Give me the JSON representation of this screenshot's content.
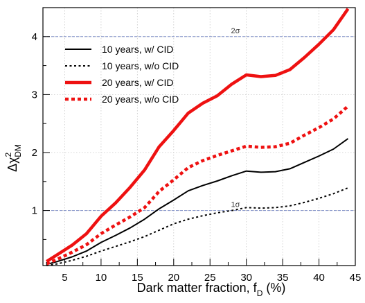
{
  "chart_data": {
    "type": "line",
    "title": "",
    "xlabel": {
      "main": "Dark matter fraction, f",
      "sub": "D",
      "suffix": " (%)"
    },
    "ylabel": {
      "main": "Δχ",
      "sup": "2",
      "sub": "DM"
    },
    "xlim": [
      2,
      45
    ],
    "ylim": [
      0.05,
      4.5
    ],
    "xticks": [
      5,
      10,
      15,
      20,
      25,
      30,
      35,
      40,
      45
    ],
    "yticks": [
      1,
      2,
      3,
      4
    ],
    "grid": true,
    "legend_position": "top-left",
    "reference_lines": [
      {
        "y": 4,
        "label": "2σ",
        "label_x": 28.5,
        "color": "#7f8fc7"
      },
      {
        "y": 1,
        "label": "1σ",
        "label_x": 28.5,
        "color": "#7f8fc7"
      }
    ],
    "series": [
      {
        "name": "10 years, w/ CID",
        "color": "#000000",
        "style": "solid",
        "weight": "thin",
        "x": [
          2.5,
          4,
          6,
          8,
          10,
          12,
          14,
          16,
          18,
          20,
          22,
          24,
          26,
          28,
          30,
          32,
          34,
          36,
          38,
          40,
          42,
          44
        ],
        "y": [
          0.07,
          0.12,
          0.2,
          0.3,
          0.45,
          0.57,
          0.7,
          0.85,
          1.03,
          1.18,
          1.34,
          1.43,
          1.51,
          1.6,
          1.68,
          1.66,
          1.67,
          1.72,
          1.83,
          1.94,
          2.06,
          2.24
        ]
      },
      {
        "name": "10 years, w/o CID",
        "color": "#000000",
        "style": "dotted",
        "weight": "thin",
        "x": [
          2.5,
          4,
          6,
          8,
          10,
          12,
          14,
          16,
          18,
          20,
          22,
          24,
          26,
          28,
          30,
          32,
          34,
          36,
          38,
          40,
          42,
          44
        ],
        "y": [
          0.05,
          0.08,
          0.14,
          0.21,
          0.3,
          0.38,
          0.46,
          0.55,
          0.66,
          0.77,
          0.85,
          0.91,
          0.96,
          1.0,
          1.05,
          1.04,
          1.05,
          1.08,
          1.14,
          1.21,
          1.29,
          1.39
        ]
      },
      {
        "name": "20 years, w/ CID",
        "color": "#ee1111",
        "style": "solid",
        "weight": "thick",
        "x": [
          2.5,
          4,
          6,
          8,
          10,
          12,
          14,
          16,
          18,
          20,
          22,
          24,
          26,
          28,
          30,
          32,
          34,
          36,
          38,
          40,
          42,
          44
        ],
        "y": [
          0.12,
          0.24,
          0.4,
          0.6,
          0.9,
          1.13,
          1.4,
          1.7,
          2.1,
          2.38,
          2.68,
          2.85,
          2.98,
          3.18,
          3.34,
          3.31,
          3.33,
          3.43,
          3.64,
          3.87,
          4.12,
          4.48
        ]
      },
      {
        "name": "20 years, w/o CID",
        "color": "#ee1111",
        "style": "dotted",
        "weight": "thick",
        "x": [
          2.5,
          4,
          6,
          8,
          10,
          12,
          14,
          16,
          18,
          20,
          22,
          24,
          26,
          28,
          30,
          32,
          34,
          36,
          38,
          40,
          42,
          44
        ],
        "y": [
          0.08,
          0.16,
          0.28,
          0.41,
          0.6,
          0.75,
          0.89,
          1.05,
          1.33,
          1.53,
          1.74,
          1.86,
          1.95,
          2.03,
          2.11,
          2.09,
          2.1,
          2.16,
          2.3,
          2.43,
          2.58,
          2.8
        ]
      }
    ]
  }
}
